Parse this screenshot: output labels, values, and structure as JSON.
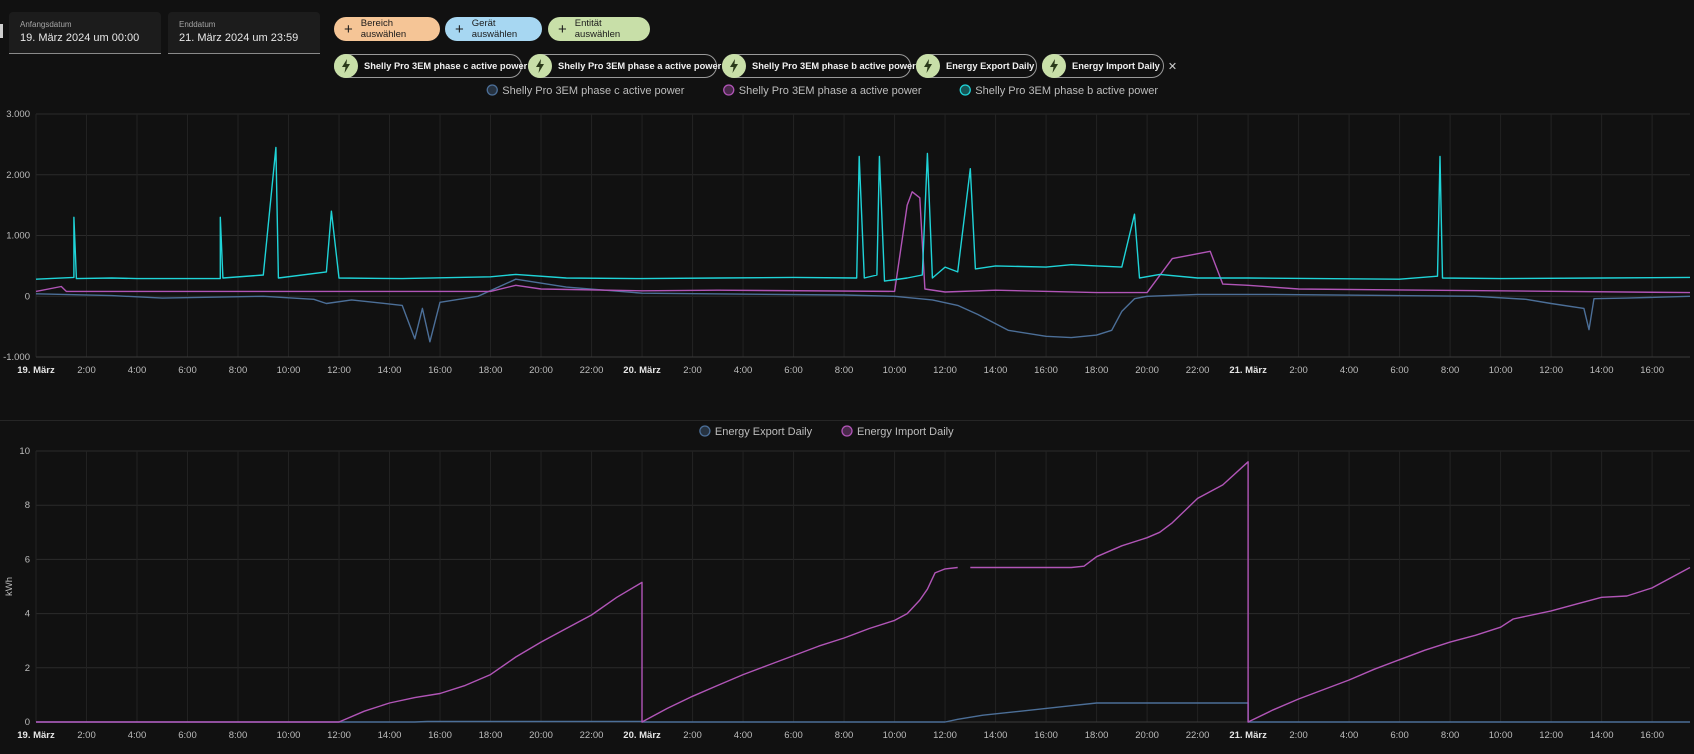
{
  "header": {
    "start": {
      "label": "Anfangsdatum",
      "value": "19. März 2024 um 00:00"
    },
    "end": {
      "label": "Enddatum",
      "value": "21. März 2024 um 23:59"
    },
    "targets": [
      {
        "label": "Bereich auswählen",
        "color": "#f5c596"
      },
      {
        "label": "Gerät auswählen",
        "color": "#a7d7f2"
      },
      {
        "label": "Entität auswählen",
        "color": "#c8dfa8"
      }
    ],
    "entities": [
      {
        "label": "Shelly Pro 3EM phase c active power",
        "icon": "flash-icon"
      },
      {
        "label": "Shelly Pro 3EM phase a active power",
        "icon": "flash-icon"
      },
      {
        "label": "Shelly Pro 3EM phase b active power",
        "icon": "flash-icon"
      },
      {
        "label": "Energy Export Daily",
        "icon": "flash-icon"
      },
      {
        "label": "Energy Import Daily",
        "icon": "flash-icon"
      }
    ]
  },
  "chart_data": [
    {
      "type": "line",
      "legend_placement": "top-center",
      "grid": true,
      "ylim": [
        -1000,
        3000
      ],
      "yticks": [
        "3.000",
        "2.000",
        "1.000",
        "0",
        "-1.000"
      ],
      "xlim_hours": [
        0,
        65.5
      ],
      "xticks": [
        "19. März",
        "2:00",
        "4:00",
        "6:00",
        "8:00",
        "10:00",
        "12:00",
        "14:00",
        "16:00",
        "18:00",
        "20:00",
        "22:00",
        "20. März",
        "2:00",
        "4:00",
        "6:00",
        "8:00",
        "10:00",
        "12:00",
        "14:00",
        "16:00",
        "18:00",
        "20:00",
        "22:00",
        "21. März",
        "2:00",
        "4:00",
        "6:00",
        "8:00",
        "10:00",
        "12:00",
        "14:00",
        "16:00"
      ],
      "series": [
        {
          "name": "Shelly Pro 3EM phase c active power",
          "color": "#4c6f98",
          "points": [
            [
              0,
              40
            ],
            [
              3,
              10
            ],
            [
              5,
              -30
            ],
            [
              9,
              0
            ],
            [
              11,
              -50
            ],
            [
              11.5,
              -120
            ],
            [
              12.5,
              -60
            ],
            [
              14.5,
              -150
            ],
            [
              15,
              -700
            ],
            [
              15.3,
              -200
            ],
            [
              15.6,
              -750
            ],
            [
              16,
              -100
            ],
            [
              17.5,
              0
            ],
            [
              19,
              280
            ],
            [
              21,
              150
            ],
            [
              24,
              50
            ],
            [
              32,
              20
            ],
            [
              34,
              0
            ],
            [
              35.5,
              -60
            ],
            [
              36.5,
              -150
            ],
            [
              37.3,
              -300
            ],
            [
              38.5,
              -560
            ],
            [
              40,
              -660
            ],
            [
              41,
              -680
            ],
            [
              42,
              -640
            ],
            [
              42.6,
              -560
            ],
            [
              43,
              -250
            ],
            [
              43.5,
              -40
            ],
            [
              44,
              0
            ],
            [
              46,
              30
            ],
            [
              49,
              30
            ],
            [
              57,
              0
            ],
            [
              59,
              -50
            ],
            [
              60,
              -120
            ],
            [
              61.3,
              -200
            ],
            [
              61.5,
              -550
            ],
            [
              61.7,
              -40
            ],
            [
              63,
              -30
            ],
            [
              65.5,
              0
            ]
          ]
        },
        {
          "name": "Shelly Pro 3EM phase a active power",
          "color": "#b155b7",
          "points": [
            [
              0,
              80
            ],
            [
              1,
              160
            ],
            [
              1.2,
              80
            ],
            [
              18,
              80
            ],
            [
              19,
              180
            ],
            [
              20,
              120
            ],
            [
              24,
              90
            ],
            [
              27,
              100
            ],
            [
              34,
              80
            ],
            [
              34.5,
              1500
            ],
            [
              34.7,
              1720
            ],
            [
              35,
              1620
            ],
            [
              35.2,
              120
            ],
            [
              36,
              70
            ],
            [
              38,
              100
            ],
            [
              42,
              60
            ],
            [
              44,
              60
            ],
            [
              45,
              620
            ],
            [
              46.5,
              740
            ],
            [
              47,
              200
            ],
            [
              48,
              180
            ],
            [
              50,
              120
            ],
            [
              65.5,
              60
            ]
          ]
        },
        {
          "name": "Shelly Pro 3EM phase b active power",
          "color": "#1fd4d8",
          "points": [
            [
              0,
              280
            ],
            [
              1.5,
              310
            ],
            [
              1.5,
              1300
            ],
            [
              1.6,
              290
            ],
            [
              3,
              300
            ],
            [
              4,
              290
            ],
            [
              7.3,
              290
            ],
            [
              7.3,
              1300
            ],
            [
              7.4,
              300
            ],
            [
              9,
              350
            ],
            [
              9.5,
              2450
            ],
            [
              9.6,
              300
            ],
            [
              11.5,
              400
            ],
            [
              11.7,
              1400
            ],
            [
              12,
              300
            ],
            [
              14.5,
              290
            ],
            [
              18,
              320
            ],
            [
              19,
              360
            ],
            [
              21,
              300
            ],
            [
              24,
              290
            ],
            [
              27,
              300
            ],
            [
              30,
              310
            ],
            [
              32.5,
              300
            ],
            [
              32.6,
              2300
            ],
            [
              32.8,
              300
            ],
            [
              33.3,
              350
            ],
            [
              33.4,
              2300
            ],
            [
              33.6,
              250
            ],
            [
              34.5,
              300
            ],
            [
              35.1,
              350
            ],
            [
              35.3,
              2350
            ],
            [
              35.5,
              300
            ],
            [
              36,
              480
            ],
            [
              36.5,
              400
            ],
            [
              37,
              2100
            ],
            [
              37.2,
              450
            ],
            [
              38,
              500
            ],
            [
              40,
              480
            ],
            [
              41,
              520
            ],
            [
              42,
              500
            ],
            [
              43,
              480
            ],
            [
              43.5,
              1350
            ],
            [
              43.7,
              300
            ],
            [
              44.5,
              360
            ],
            [
              46,
              300
            ],
            [
              48,
              300
            ],
            [
              54,
              280
            ],
            [
              55.5,
              330
            ],
            [
              55.6,
              2300
            ],
            [
              55.7,
              300
            ],
            [
              58,
              290
            ],
            [
              62,
              300
            ],
            [
              65.5,
              310
            ]
          ]
        }
      ]
    },
    {
      "type": "line",
      "legend_placement": "top-center",
      "grid": true,
      "ylabel": "kWh",
      "ylim": [
        0,
        10
      ],
      "yticks": [
        "10",
        "8",
        "6",
        "4",
        "2",
        "0"
      ],
      "xlim_hours": [
        0,
        65.5
      ],
      "xticks": [
        "19. März",
        "2:00",
        "4:00",
        "6:00",
        "8:00",
        "10:00",
        "12:00",
        "14:00",
        "16:00",
        "18:00",
        "20:00",
        "22:00",
        "20. März",
        "2:00",
        "4:00",
        "6:00",
        "8:00",
        "10:00",
        "12:00",
        "14:00",
        "16:00",
        "18:00",
        "20:00",
        "22:00",
        "21. März",
        "2:00",
        "4:00",
        "6:00",
        "8:00",
        "10:00",
        "12:00",
        "14:00",
        "16:00"
      ],
      "series": [
        {
          "name": "Energy Export Daily",
          "color": "#4c6f98",
          "points": [
            [
              0,
              0
            ],
            [
              15,
              0
            ],
            [
              15.5,
              0.02
            ],
            [
              24,
              0.02
            ],
            [
              24,
              0
            ],
            [
              36,
              0
            ],
            [
              36.5,
              0.1
            ],
            [
              37.5,
              0.25
            ],
            [
              39,
              0.4
            ],
            [
              41,
              0.6
            ],
            [
              42,
              0.7
            ],
            [
              48,
              0.7
            ],
            [
              48,
              0
            ],
            [
              65.5,
              0
            ]
          ]
        },
        {
          "name": "Energy Import Daily",
          "color": "#b155b7",
          "points": [
            [
              0,
              0
            ],
            [
              12,
              0
            ],
            [
              13,
              0.4
            ],
            [
              14,
              0.7
            ],
            [
              15,
              0.9
            ],
            [
              16,
              1.05
            ],
            [
              17,
              1.35
            ],
            [
              18,
              1.75
            ],
            [
              19,
              2.4
            ],
            [
              20,
              2.95
            ],
            [
              21,
              3.45
            ],
            [
              22,
              3.95
            ],
            [
              23,
              4.6
            ],
            [
              24,
              5.15
            ],
            [
              24,
              0
            ],
            [
              25,
              0.5
            ],
            [
              26,
              0.95
            ],
            [
              27,
              1.35
            ],
            [
              28,
              1.75
            ],
            [
              29,
              2.1
            ],
            [
              30,
              2.45
            ],
            [
              31,
              2.8
            ],
            [
              32,
              3.1
            ],
            [
              33,
              3.45
            ],
            [
              34,
              3.75
            ],
            [
              34.5,
              4.0
            ],
            [
              35,
              4.5
            ],
            [
              35.3,
              4.9
            ],
            [
              35.6,
              5.5
            ],
            [
              36,
              5.65
            ],
            [
              36.5,
              5.7
            ],
            [
              36.6,
              null
            ],
            [
              37,
              5.7
            ],
            [
              41,
              5.7
            ],
            [
              41.5,
              5.75
            ],
            [
              42,
              6.1
            ],
            [
              43,
              6.5
            ],
            [
              44,
              6.8
            ],
            [
              44.5,
              7.0
            ],
            [
              45,
              7.35
            ],
            [
              46,
              8.25
            ],
            [
              47,
              8.75
            ],
            [
              48,
              9.6
            ],
            [
              48,
              0
            ],
            [
              49,
              0.45
            ],
            [
              50,
              0.85
            ],
            [
              51,
              1.2
            ],
            [
              52,
              1.55
            ],
            [
              53,
              1.95
            ],
            [
              54,
              2.3
            ],
            [
              55,
              2.65
            ],
            [
              56,
              2.95
            ],
            [
              57,
              3.2
            ],
            [
              58,
              3.5
            ],
            [
              58.5,
              3.8
            ],
            [
              60,
              4.1
            ],
            [
              61,
              4.35
            ],
            [
              62,
              4.6
            ],
            [
              63,
              4.65
            ],
            [
              64,
              4.95
            ],
            [
              65.5,
              5.7
            ]
          ]
        }
      ]
    }
  ]
}
